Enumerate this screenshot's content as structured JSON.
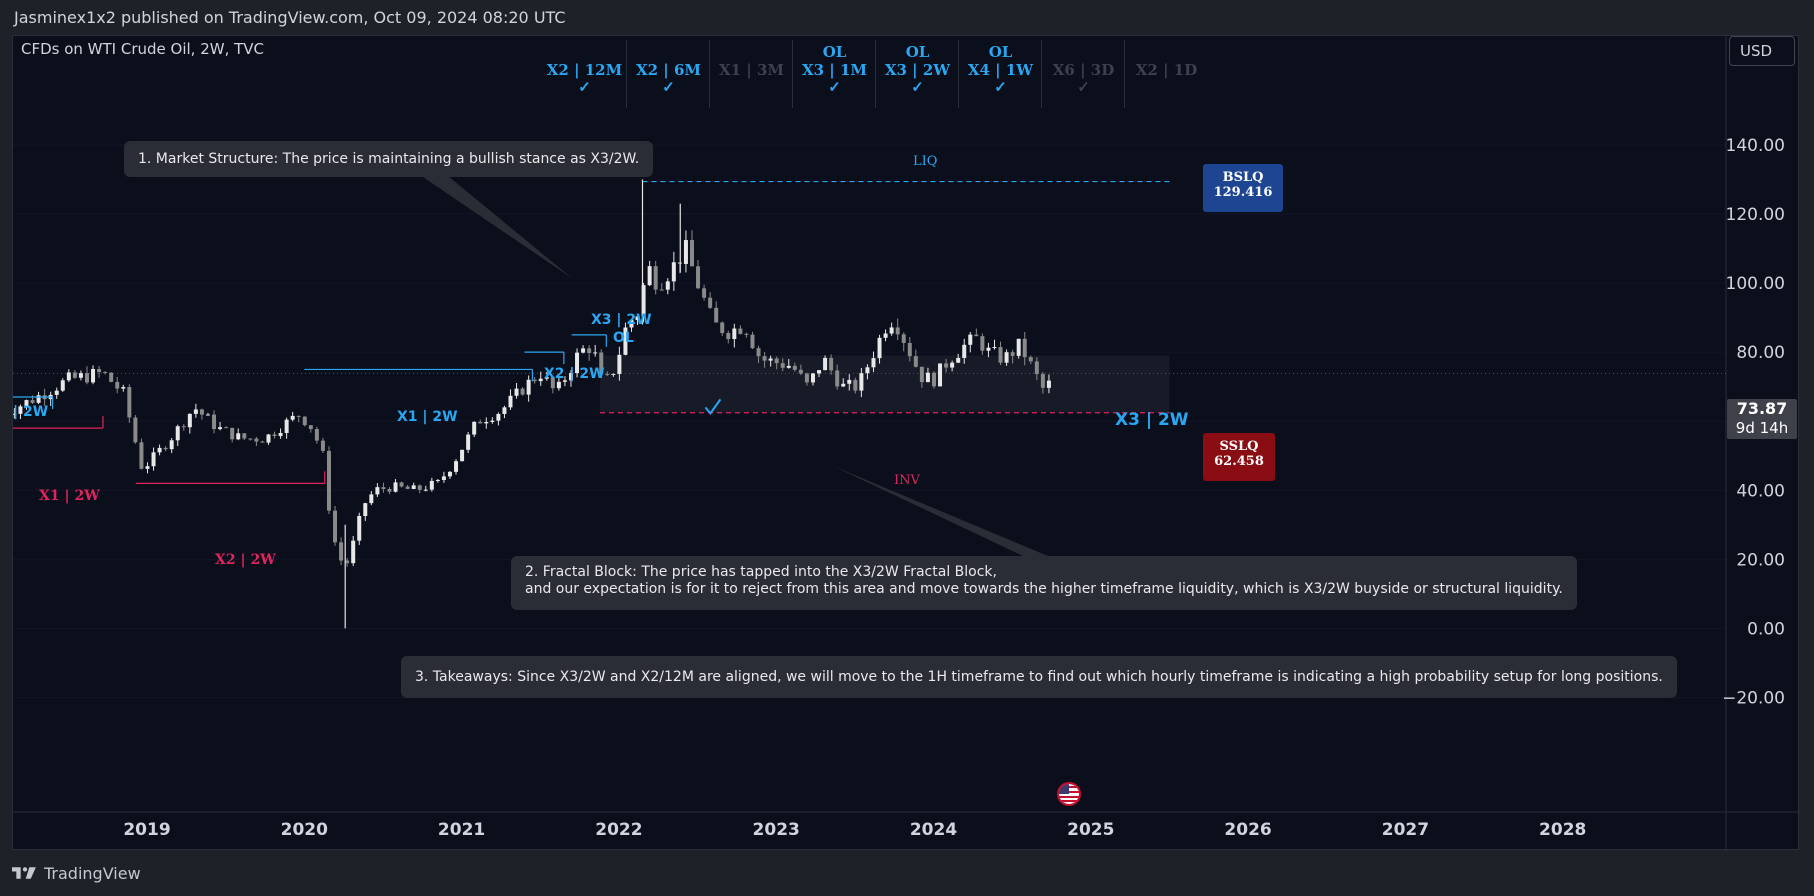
{
  "header": {
    "published_text": "Jasminex1x2 published on TradingView.com, Oct 09, 2024 08:20 UTC"
  },
  "footer": {
    "brand": "TradingView",
    "logo_icon": "tradingview-logo-icon"
  },
  "symbol": {
    "title": "CFDs on WTI Crude Oil, 2W, TVC"
  },
  "currency_button": "USD",
  "timeframe_checklist": [
    {
      "top": "",
      "label": "X2 | 12M",
      "checked": true,
      "active": true
    },
    {
      "top": "",
      "label": "X2 | 6M",
      "checked": true,
      "active": true
    },
    {
      "top": "",
      "label": "X1 | 3M",
      "checked": false,
      "active": false
    },
    {
      "top": "OL",
      "label": "X3 | 1M",
      "checked": true,
      "active": true
    },
    {
      "top": "OL",
      "label": "X3 | 2W",
      "checked": true,
      "active": true
    },
    {
      "top": "OL",
      "label": "X4 | 1W",
      "checked": true,
      "active": true
    },
    {
      "top": "",
      "label": "X6 | 3D",
      "checked": true,
      "active": false
    },
    {
      "top": "",
      "label": "X2 | 1D",
      "checked": false,
      "active": false
    }
  ],
  "annotations": {
    "note1": "1. Market Structure: The price is maintaining a bullish stance as X3/2W.",
    "note2_line1": "2. Fractal Block: The price has tapped into the X3/2W Fractal Block,",
    "note2_line2": "and our expectation is for it to reject from this area and move towards the higher timeframe liquidity, which is X3/2W buyside or structural liquidity.",
    "note3": "3. Takeaways: Since X3/2W and X2/12M are aligned, we will move to the 1H timeframe to find out which hourly timeframe is indicating a high probability setup for long positions."
  },
  "chart_labels": {
    "liq": "LIQ",
    "inv": "INV",
    "bslq_label": "BSLQ",
    "bslq_value": "129.416",
    "sslq_label": "SSLQ",
    "sslq_value": "62.458",
    "x3_2w_block": "X3 | 2W",
    "x3_2w_top": "X3 | 2W",
    "ol": "OL",
    "x2_2w_blue": "X2 | 2W",
    "x1_2w_blue": "X1 | 2W",
    "x1_2w_left": "| 2W",
    "x1_2w_red": "X1 | 2W",
    "x2_2w_red": "X2 | 2W",
    "last_price": "73.87",
    "countdown": "9d 14h"
  },
  "colors": {
    "background": "#0b0e1b",
    "blue": "#2aa7f2",
    "red": "#e0245e",
    "bslq_box": "#1e4591",
    "sslq_box": "#8b0d14",
    "candle_up": "#e8e8e8",
    "candle_down": "#8a8a8a",
    "muted": "#3c4050"
  },
  "chart_data": {
    "type": "candlestick",
    "title": "CFDs on WTI Crude Oil, 2W, TVC",
    "y_axis": {
      "ticks": [
        -20,
        0,
        20,
        40,
        60,
        80,
        100,
        120,
        140
      ],
      "tick_labels": [
        "−20.00",
        "0.00",
        "20.00",
        "40.00",
        "60.00",
        "80.00",
        "100.00",
        "120.00",
        "140.00"
      ],
      "range": [
        -26,
        166
      ]
    },
    "x_axis": {
      "ticks": [
        2019,
        2020,
        2021,
        2022,
        2023,
        2024,
        2025,
        2026,
        2027,
        2028
      ],
      "range": [
        2018.08,
        2028.8
      ]
    },
    "last_price": 73.87,
    "levels": {
      "bslq": 129.416,
      "sslq": 62.458
    },
    "anchors": [
      [
        2018.08,
        62
      ],
      [
        2018.3,
        67
      ],
      [
        2018.5,
        72
      ],
      [
        2018.72,
        74
      ],
      [
        2018.85,
        68
      ],
      [
        2018.97,
        46
      ],
      [
        2019.15,
        55
      ],
      [
        2019.3,
        64
      ],
      [
        2019.45,
        58
      ],
      [
        2019.6,
        55
      ],
      [
        2019.75,
        55
      ],
      [
        2019.9,
        60
      ],
      [
        2019.97,
        62
      ],
      [
        2020.05,
        58
      ],
      [
        2020.12,
        50
      ],
      [
        2020.17,
        30
      ],
      [
        2020.22,
        20
      ],
      [
        2020.28,
        19
      ],
      [
        2020.33,
        28
      ],
      [
        2020.38,
        36
      ],
      [
        2020.45,
        40
      ],
      [
        2020.55,
        41
      ],
      [
        2020.7,
        40
      ],
      [
        2020.85,
        42
      ],
      [
        2020.95,
        48
      ],
      [
        2021.1,
        60
      ],
      [
        2021.25,
        63
      ],
      [
        2021.4,
        70
      ],
      [
        2021.5,
        74
      ],
      [
        2021.6,
        68
      ],
      [
        2021.75,
        80
      ],
      [
        2021.83,
        82
      ],
      [
        2021.9,
        70
      ],
      [
        2021.98,
        76
      ],
      [
        2022.05,
        88
      ],
      [
        2022.13,
        92
      ],
      [
        2022.18,
        105
      ],
      [
        2022.25,
        100
      ],
      [
        2022.35,
        105
      ],
      [
        2022.42,
        110
      ],
      [
        2022.5,
        100
      ],
      [
        2022.6,
        88
      ],
      [
        2022.7,
        86
      ],
      [
        2022.8,
        88
      ],
      [
        2022.9,
        78
      ],
      [
        2023.0,
        77
      ],
      [
        2023.1,
        76
      ],
      [
        2023.2,
        70
      ],
      [
        2023.3,
        78
      ],
      [
        2023.42,
        70
      ],
      [
        2023.52,
        70
      ],
      [
        2023.62,
        80
      ],
      [
        2023.7,
        88
      ],
      [
        2023.75,
        90
      ],
      [
        2023.83,
        82
      ],
      [
        2023.92,
        73
      ],
      [
        2024.0,
        72
      ],
      [
        2024.1,
        78
      ],
      [
        2024.2,
        82
      ],
      [
        2024.28,
        84
      ],
      [
        2024.35,
        80
      ],
      [
        2024.45,
        78
      ],
      [
        2024.55,
        82
      ],
      [
        2024.62,
        76
      ],
      [
        2024.7,
        69
      ],
      [
        2024.76,
        72
      ]
    ],
    "price_spikes": [
      {
        "x": 2020.26,
        "high": 30,
        "low": 0
      },
      {
        "x": 2022.15,
        "high": 130,
        "low": 88
      },
      {
        "x": 2022.39,
        "high": 123,
        "low": 103
      }
    ],
    "lines": [
      {
        "name": "X1 | 2W",
        "color": "blue",
        "x0": 2020.0,
        "x1": 2021.45,
        "y": 75
      },
      {
        "name": "X2 | 2W",
        "color": "blue",
        "x0": 2021.4,
        "x1": 2021.65,
        "y": 80
      },
      {
        "name": "X3 | 2W",
        "color": "blue",
        "x0": 2021.7,
        "x1": 2021.92,
        "y": 85
      },
      {
        "name": "| 2W",
        "color": "blue",
        "x0": 2018.08,
        "x1": 2018.4,
        "y": 67
      },
      {
        "name": "X1 | 2W",
        "color": "red",
        "x0": 2018.08,
        "x1": 2018.72,
        "y": 58
      },
      {
        "name": "X2 | 2W",
        "color": "red",
        "x0": 2018.93,
        "x1": 2020.13,
        "y": 42
      }
    ],
    "zone": {
      "x0": 2021.88,
      "x1": 2025.5,
      "y0": 62.458,
      "y1": 79
    }
  }
}
